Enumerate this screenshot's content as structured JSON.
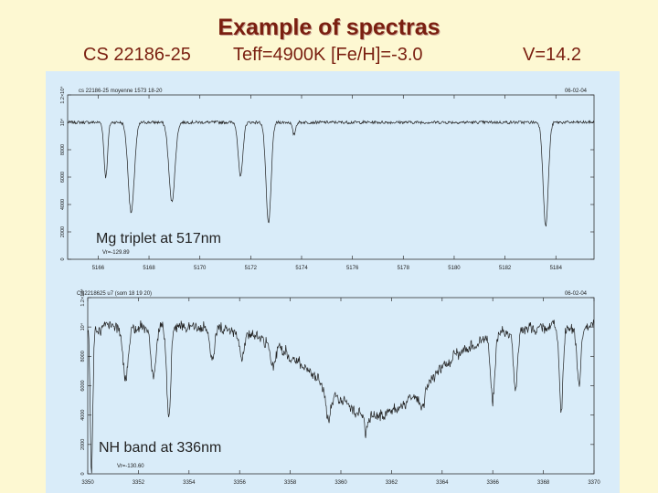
{
  "title": "Example of spectras",
  "subtitle": {
    "star": "CS 22186-25",
    "params": "Teff=4900K [Fe/H]=-3.0",
    "vmag": "V=14.2"
  },
  "colors": {
    "title": "#7a1f10",
    "background": "#fdf8d2",
    "plot_bg": "#d9ecf9"
  },
  "chart_data": [
    {
      "type": "line",
      "header_left": "cs 22186-25 moyenne 1573 18-20",
      "header_right": "06-02-04",
      "annotation": "Mg triplet at 517nm",
      "vr_label": "Vr=-129.89",
      "xlim": [
        5164.8,
        5185.5
      ],
      "ylim": [
        0,
        12000
      ],
      "x_ticks": [
        5166,
        5168,
        5170,
        5172,
        5174,
        5176,
        5178,
        5180,
        5182,
        5184
      ],
      "x_tick_labels": [
        "5166",
        "5168",
        "5170",
        "5172",
        "5174",
        "5176",
        "5178",
        "5180",
        "5182",
        "5184"
      ],
      "y_ticks": [
        0,
        2000,
        4000,
        6000,
        8000,
        10000,
        12000
      ],
      "y_tick_labels": [
        "0",
        "2000",
        "4000",
        "6000",
        "8000",
        "10⁴",
        "1.2×10⁴"
      ],
      "continuum": 10000,
      "absorption_lines": [
        {
          "x": 5166.3,
          "depth": 4000,
          "width": 0.07
        },
        {
          "x": 5167.3,
          "depth": 6600,
          "width": 0.12
        },
        {
          "x": 5168.9,
          "depth": 5800,
          "width": 0.12
        },
        {
          "x": 5171.6,
          "depth": 4000,
          "width": 0.09
        },
        {
          "x": 5172.7,
          "depth": 7400,
          "width": 0.1
        },
        {
          "x": 5173.7,
          "depth": 900,
          "width": 0.06
        },
        {
          "x": 5183.6,
          "depth": 7600,
          "width": 0.1
        }
      ]
    },
    {
      "type": "line",
      "header_left": "CS2218625 u7 (som 18 19 20)",
      "header_right": "06-02-04",
      "annotation": "NH band at 336nm",
      "vr_label": "Vr=-130.60",
      "xlim": [
        3350,
        3370
      ],
      "ylim": [
        0,
        12000
      ],
      "x_ticks": [
        3350,
        3352,
        3354,
        3356,
        3358,
        3360,
        3362,
        3364,
        3366,
        3368,
        3370
      ],
      "x_tick_labels": [
        "3350",
        "3352",
        "3354",
        "3356",
        "3358",
        "3360",
        "3362",
        "3364",
        "3366",
        "3368",
        "3370"
      ],
      "y_ticks": [
        0,
        2000,
        4000,
        6000,
        8000,
        10000,
        12000
      ],
      "y_tick_labels": [
        "0",
        "2000",
        "4000",
        "6000",
        "8000",
        "10⁴",
        "1.2×10⁴"
      ],
      "continuum": 10000,
      "band": {
        "center": 3361.3,
        "depth": 6000,
        "width": 2.2
      },
      "absorption_lines": [
        {
          "x": 3350.15,
          "depth": 10000,
          "width": 0.05
        },
        {
          "x": 3351.5,
          "depth": 3600,
          "width": 0.1
        },
        {
          "x": 3352.6,
          "depth": 3200,
          "width": 0.1
        },
        {
          "x": 3353.2,
          "depth": 6200,
          "width": 0.08
        },
        {
          "x": 3354.9,
          "depth": 2200,
          "width": 0.1
        },
        {
          "x": 3356.1,
          "depth": 1800,
          "width": 0.1
        },
        {
          "x": 3357.3,
          "depth": 1600,
          "width": 0.1
        },
        {
          "x": 3359.5,
          "depth": 1800,
          "width": 0.1
        },
        {
          "x": 3361.0,
          "depth": 1200,
          "width": 0.08
        },
        {
          "x": 3363.2,
          "depth": 1500,
          "width": 0.1
        },
        {
          "x": 3366.0,
          "depth": 4500,
          "width": 0.08
        },
        {
          "x": 3366.9,
          "depth": 4000,
          "width": 0.08
        },
        {
          "x": 3368.7,
          "depth": 5600,
          "width": 0.07
        },
        {
          "x": 3369.4,
          "depth": 4000,
          "width": 0.08
        }
      ]
    }
  ]
}
